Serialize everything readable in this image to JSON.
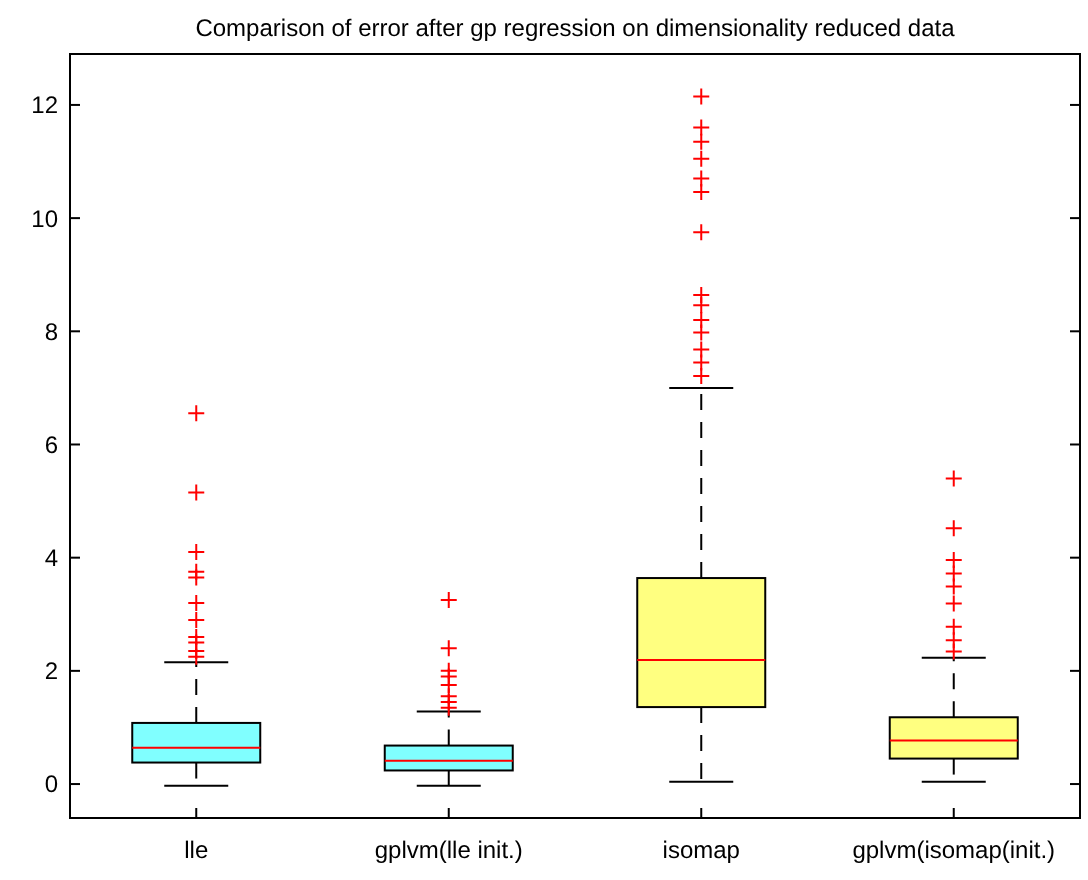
{
  "chart_data": {
    "type": "box",
    "title": "Comparison of error after gp regression on dimensionality reduced data",
    "categories": [
      "lle",
      "gplvm(lle init.)",
      "isomap",
      "gplvm(isomap(init.)"
    ],
    "series": [
      {
        "boxes": [
          {
            "low": -0.03,
            "q1": 0.38,
            "median": 0.64,
            "q3": 1.08,
            "high": 2.15,
            "outliers": [
              6.55,
              5.15,
              4.1,
              3.75,
              3.65,
              3.2,
              2.9,
              2.6,
              2.5,
              2.35,
              2.25
            ]
          },
          {
            "low": -0.03,
            "q1": 0.24,
            "median": 0.41,
            "q3": 0.68,
            "high": 1.28,
            "outliers": [
              3.25,
              2.4,
              2.0,
              1.9,
              1.75,
              1.55,
              1.45,
              1.35
            ]
          },
          {
            "low": 0.04,
            "q1": 1.36,
            "median": 2.19,
            "q3": 3.64,
            "high": 7.0,
            "outliers": [
              12.15,
              11.6,
              11.35,
              11.05,
              10.7,
              10.46,
              9.75,
              8.64,
              8.46,
              8.2,
              7.98,
              7.68,
              7.45,
              7.21
            ]
          },
          {
            "low": 0.04,
            "q1": 0.45,
            "median": 0.77,
            "q3": 1.18,
            "high": 2.23,
            "outliers": [
              5.4,
              4.52,
              3.96,
              3.72,
              3.49,
              3.19,
              2.78,
              2.54,
              2.34
            ]
          }
        ],
        "colors": [
          "#80ffff",
          "#80ffff",
          "#ffff80",
          "#ffff80"
        ]
      }
    ],
    "ylim": [
      -0.6,
      12.9
    ],
    "yticks": [
      0,
      2,
      4,
      6,
      8,
      10,
      12
    ],
    "marker": "cross",
    "grid": false
  }
}
